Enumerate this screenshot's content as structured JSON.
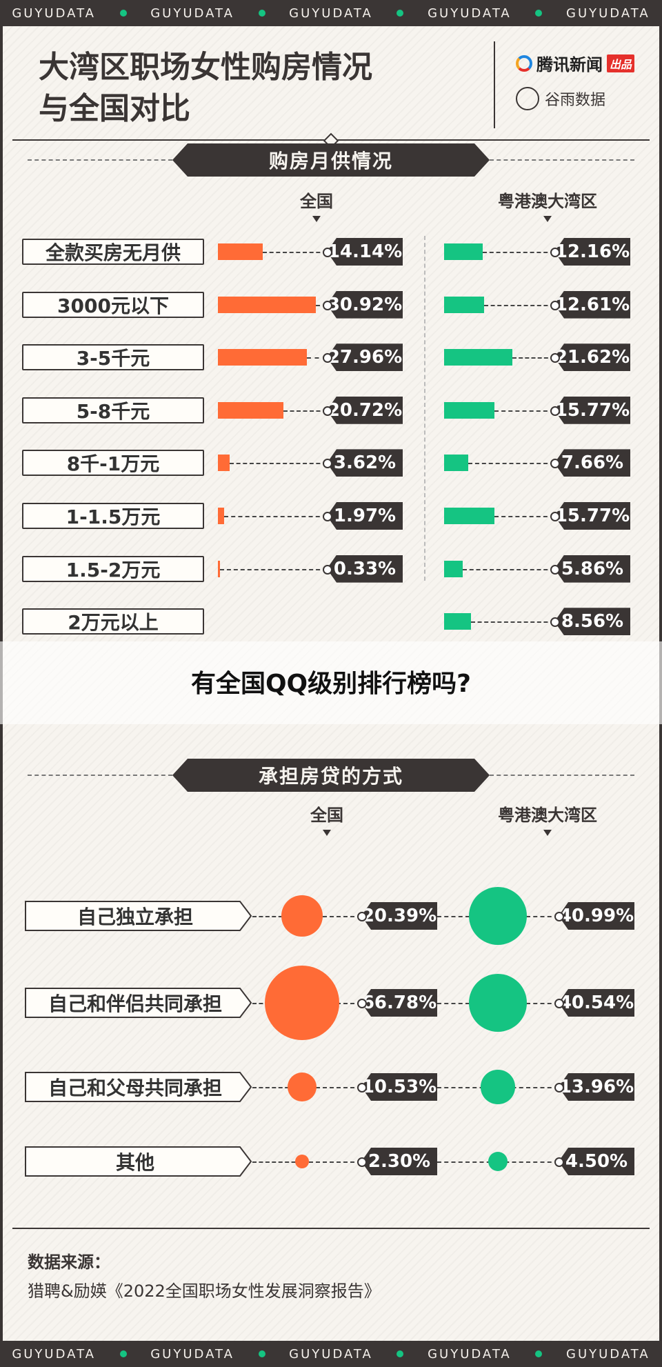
{
  "brand_strip": [
    "GUYUDATA",
    "GUYUDATA",
    "GUYUDATA",
    "GUYUDATA",
    "GUYUDATA"
  ],
  "title_line1": "大湾区职场女性购房情况",
  "title_line2": "与全国对比",
  "brands": {
    "tencent": "腾讯新闻",
    "tencent_badge": "出品",
    "guyu": "谷雨数据"
  },
  "colors": {
    "national": "#ff6b36",
    "gba": "#15c482",
    "dark": "#3a3534"
  },
  "overlay_question": "有全国QQ级别排行榜吗?",
  "source": {
    "label": "数据来源：",
    "text": "猎聘&励媖《2022全国职场女性发展洞察报告》"
  },
  "chart_data": [
    {
      "type": "bar",
      "title": "购房月供情况",
      "series": [
        {
          "name": "全国",
          "values": [
            14.14,
            30.92,
            27.96,
            20.72,
            3.62,
            1.97,
            0.33,
            null
          ]
        },
        {
          "name": "粤港澳大湾区",
          "values": [
            12.16,
            12.61,
            21.62,
            15.77,
            7.66,
            15.77,
            5.86,
            8.56
          ]
        }
      ],
      "categories": [
        "全款买房无月供",
        "3000元以下",
        "3-5千元",
        "5-8千元",
        "8千-1万元",
        "1-1.5万元",
        "1.5-2万元",
        "2万元以上"
      ],
      "value_labels": [
        [
          "14.14%",
          "30.92%",
          "27.96%",
          "20.72%",
          "3.62%",
          "1.97%",
          "0.33%",
          ""
        ],
        [
          "12.16%",
          "12.61%",
          "21.62%",
          "15.77%",
          "7.66%",
          "15.77%",
          "5.86%",
          "8.56%"
        ]
      ]
    },
    {
      "type": "scatter",
      "title": "承担房贷的方式",
      "series": [
        {
          "name": "全国",
          "values": [
            20.39,
            66.78,
            10.53,
            2.3
          ]
        },
        {
          "name": "粤港澳大湾区",
          "values": [
            40.99,
            40.54,
            13.96,
            4.5
          ]
        }
      ],
      "categories": [
        "自己独立承担",
        "自己和伴侣共同承担",
        "自己和父母共同承担",
        "其他"
      ],
      "value_labels": [
        [
          "20.39%",
          "66.78%",
          "10.53%",
          "2.30%"
        ],
        [
          "40.99%",
          "40.54%",
          "13.96%",
          "4.50%"
        ]
      ]
    }
  ]
}
